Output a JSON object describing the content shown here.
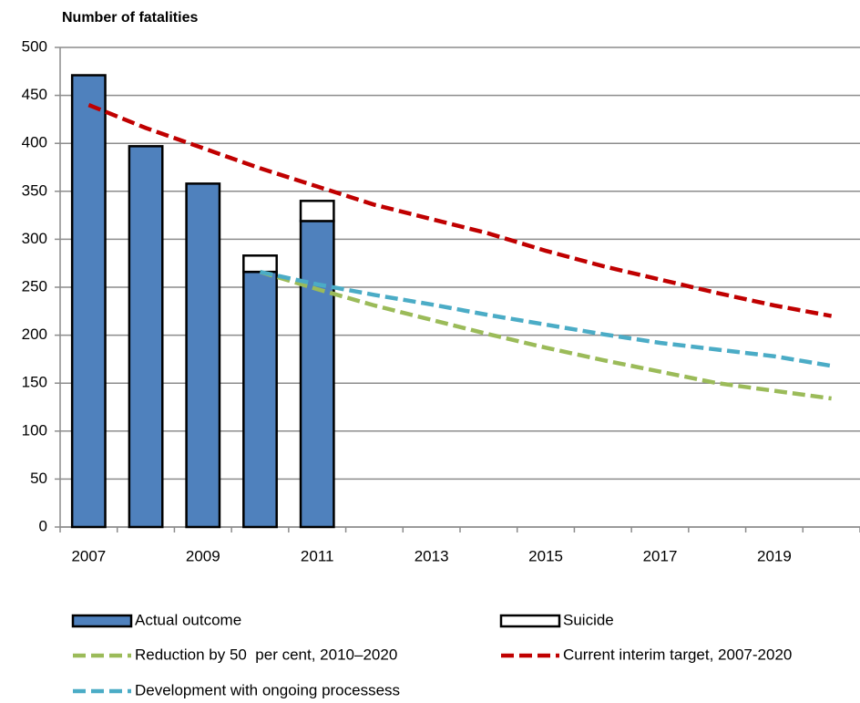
{
  "chart_data": {
    "type": "bar",
    "ylabel": "Number of fatalities",
    "categories": [
      "2007",
      null,
      "2009",
      null,
      "2011",
      null,
      "2013",
      null,
      "2015",
      null,
      "2017",
      null,
      "2019",
      null
    ],
    "ylim": [
      0,
      500
    ],
    "yticks": [
      0,
      50,
      100,
      150,
      200,
      250,
      300,
      350,
      400,
      450,
      500
    ],
    "grid": true,
    "stacked": true,
    "series": [
      {
        "name": "Actual outcome",
        "type": "bar",
        "color": "#4f81bd",
        "values": [
          471,
          397,
          358,
          266,
          319,
          null,
          null,
          null,
          null,
          null,
          null,
          null,
          null,
          null
        ]
      },
      {
        "name": "Suicide",
        "type": "bar",
        "color": "#ffffff",
        "values": [
          null,
          null,
          null,
          17,
          21,
          null,
          null,
          null,
          null,
          null,
          null,
          null,
          null,
          null
        ]
      },
      {
        "name": "Reduction by 50  per cent, 2010–2020",
        "type": "line",
        "color": "#9bbb59",
        "values": [
          null,
          null,
          null,
          266,
          248,
          231,
          216,
          201,
          187,
          174,
          162,
          150,
          142,
          134
        ]
      },
      {
        "name": "Current interim target, 2007-2020",
        "type": "line",
        "color": "#c00000",
        "values": [
          440,
          416,
          395,
          374,
          355,
          336,
          321,
          306,
          288,
          272,
          258,
          244,
          231,
          220
        ]
      },
      {
        "name": "Development with ongoing processess",
        "type": "line",
        "color": "#4bacc6",
        "values": [
          null,
          null,
          null,
          266,
          253,
          242,
          232,
          221,
          211,
          201,
          192,
          185,
          178,
          168
        ]
      }
    ]
  }
}
